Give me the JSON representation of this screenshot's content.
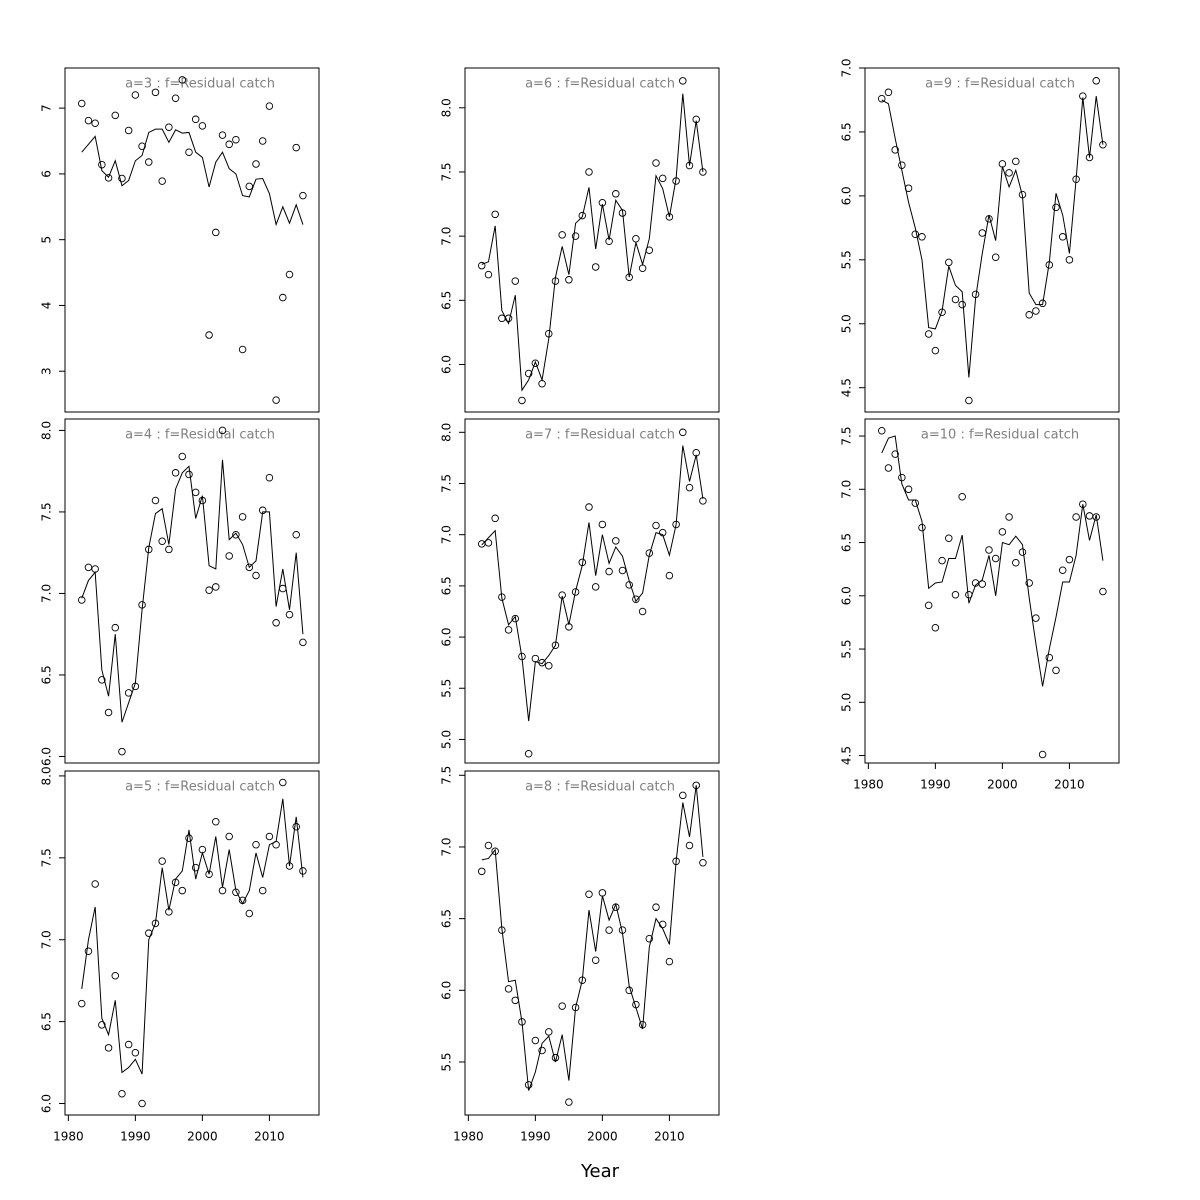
{
  "x_label": "Year",
  "chart_data": [
    {
      "type": "line",
      "title": "a=3  :  f=Residual catch",
      "x": [
        1982,
        1983,
        1984,
        1985,
        1986,
        1987,
        1988,
        1989,
        1990,
        1991,
        1992,
        1993,
        1994,
        1995,
        1996,
        1997,
        1998,
        1999,
        2000,
        2001,
        2002,
        2003,
        2004,
        2005,
        2006,
        2007,
        2008,
        2009,
        2010,
        2011,
        2012,
        2013,
        2014,
        2015
      ],
      "xlim": [
        1979.5,
        2017.4
      ],
      "ylim": [
        2.38,
        7.61
      ],
      "yticks": [
        3,
        4,
        5,
        6,
        7
      ],
      "series": [
        {
          "style": "points",
          "color": "#000000",
          "values": [
            7.07,
            6.81,
            6.77,
            6.14,
            5.94,
            6.89,
            5.93,
            6.66,
            7.2,
            6.42,
            6.18,
            7.24,
            5.89,
            6.71,
            7.15,
            7.43,
            6.33,
            6.83,
            6.73,
            3.55,
            5.11,
            6.59,
            6.45,
            6.52,
            3.33,
            5.81,
            6.15,
            6.5,
            7.03,
            2.56,
            4.12,
            4.47,
            6.4,
            5.67
          ]
        },
        {
          "style": "line",
          "color": "#000000",
          "values": [
            6.33,
            6.45,
            6.57,
            6.05,
            5.95,
            6.2,
            5.82,
            5.9,
            6.2,
            6.28,
            6.63,
            6.68,
            6.68,
            6.48,
            6.67,
            6.62,
            6.63,
            6.33,
            6.25,
            5.8,
            6.18,
            6.33,
            6.08,
            6.0,
            5.67,
            5.65,
            5.92,
            5.93,
            5.7,
            5.23,
            5.5,
            5.25,
            5.53,
            5.23
          ]
        }
      ]
    },
    {
      "type": "line",
      "title": "a=4  :  f=Residual catch",
      "x": [
        1982,
        1983,
        1984,
        1985,
        1986,
        1987,
        1988,
        1989,
        1990,
        1991,
        1992,
        1993,
        1994,
        1995,
        1996,
        1997,
        1998,
        1999,
        2000,
        2001,
        2002,
        2003,
        2004,
        2005,
        2006,
        2007,
        2008,
        2009,
        2010,
        2011,
        2012,
        2013,
        2014,
        2015
      ],
      "xlim": [
        1979.5,
        2017.4
      ],
      "ylim": [
        5.96,
        8.07
      ],
      "yticks": [
        {
          "value": 6,
          "label": "6.0"
        },
        6.5,
        {
          "value": 7,
          "label": "7.0"
        },
        7.5,
        {
          "value": 8,
          "label": "8.0"
        }
      ],
      "series": [
        {
          "style": "points",
          "color": "#000000",
          "values": [
            6.96,
            7.16,
            7.15,
            6.47,
            6.27,
            6.79,
            6.03,
            6.39,
            6.43,
            6.93,
            7.27,
            7.57,
            7.32,
            7.27,
            7.74,
            7.84,
            7.73,
            7.62,
            7.57,
            7.02,
            7.04,
            8.0,
            7.23,
            7.36,
            7.47,
            7.16,
            7.11,
            7.51,
            7.71,
            6.82,
            7.03,
            6.87,
            7.36,
            6.7
          ]
        },
        {
          "style": "line",
          "color": "#000000",
          "values": [
            6.97,
            7.08,
            7.13,
            6.53,
            6.37,
            6.75,
            6.21,
            6.33,
            6.45,
            6.9,
            7.28,
            7.49,
            7.52,
            7.3,
            7.64,
            7.74,
            7.78,
            7.46,
            7.6,
            7.17,
            7.15,
            7.82,
            7.33,
            7.37,
            7.3,
            7.16,
            7.2,
            7.5,
            7.5,
            6.92,
            7.15,
            6.9,
            7.25,
            6.75
          ]
        }
      ]
    },
    {
      "type": "line",
      "title": "a=5  :  f=Residual catch",
      "x": [
        1982,
        1983,
        1984,
        1985,
        1986,
        1987,
        1988,
        1989,
        1990,
        1991,
        1992,
        1993,
        1994,
        1995,
        1996,
        1997,
        1998,
        1999,
        2000,
        2001,
        2002,
        2003,
        2004,
        2005,
        2006,
        2007,
        2008,
        2009,
        2010,
        2011,
        2012,
        2013,
        2014,
        2015
      ],
      "xlim": [
        1979.5,
        2017.4
      ],
      "xticks": [
        1980,
        1990,
        2000,
        2010
      ],
      "ylim": [
        5.93,
        8.03
      ],
      "yticks": [
        {
          "value": 6,
          "label": "6.0"
        },
        6.5,
        {
          "value": 7,
          "label": "7.0"
        },
        7.5,
        {
          "value": 8,
          "label": "8.0"
        }
      ],
      "series": [
        {
          "style": "points",
          "color": "#000000",
          "values": [
            6.61,
            6.93,
            7.34,
            6.48,
            6.34,
            6.78,
            6.06,
            6.36,
            6.31,
            6.0,
            7.04,
            7.1,
            7.48,
            7.17,
            7.35,
            7.3,
            7.62,
            7.44,
            7.55,
            7.4,
            7.72,
            7.3,
            7.63,
            7.29,
            7.24,
            7.16,
            7.58,
            7.3,
            7.63,
            7.58,
            7.96,
            7.45,
            7.69,
            7.42
          ]
        },
        {
          "style": "line",
          "color": "#000000",
          "values": [
            6.7,
            7.0,
            7.2,
            6.52,
            6.42,
            6.63,
            6.19,
            6.22,
            6.27,
            6.18,
            7.0,
            7.1,
            7.44,
            7.18,
            7.37,
            7.42,
            7.67,
            7.37,
            7.53,
            7.4,
            7.63,
            7.32,
            7.55,
            7.3,
            7.22,
            7.3,
            7.53,
            7.38,
            7.58,
            7.6,
            7.86,
            7.45,
            7.75,
            7.38
          ]
        }
      ]
    },
    {
      "type": "line",
      "title": "a=6  :  f=Residual catch",
      "x": [
        1982,
        1983,
        1984,
        1985,
        1986,
        1987,
        1988,
        1989,
        1990,
        1991,
        1992,
        1993,
        1994,
        1995,
        1996,
        1997,
        1998,
        1999,
        2000,
        2001,
        2002,
        2003,
        2004,
        2005,
        2006,
        2007,
        2008,
        2009,
        2010,
        2011,
        2012,
        2013,
        2014,
        2015
      ],
      "xlim": [
        1979.5,
        2017.4
      ],
      "ylim": [
        5.63,
        8.31
      ],
      "yticks": [
        {
          "value": 6,
          "label": "6.0"
        },
        6.5,
        {
          "value": 7,
          "label": "7.0"
        },
        7.5,
        {
          "value": 8,
          "label": "8.0"
        }
      ],
      "series": [
        {
          "style": "points",
          "color": "#000000",
          "values": [
            6.77,
            6.7,
            7.17,
            6.36,
            6.36,
            6.65,
            5.72,
            5.93,
            6.01,
            5.85,
            6.24,
            6.65,
            7.01,
            6.66,
            7.0,
            7.16,
            7.5,
            6.76,
            7.26,
            6.96,
            7.33,
            7.18,
            6.68,
            6.98,
            6.75,
            6.89,
            7.57,
            7.45,
            7.15,
            7.43,
            8.21,
            7.55,
            7.91,
            7.5
          ]
        },
        {
          "style": "line",
          "color": "#000000",
          "values": [
            6.78,
            6.8,
            7.08,
            6.42,
            6.32,
            6.54,
            5.8,
            5.88,
            6.02,
            5.88,
            6.2,
            6.68,
            6.92,
            6.7,
            7.1,
            7.15,
            7.38,
            6.9,
            7.25,
            6.97,
            7.28,
            7.2,
            6.68,
            6.95,
            6.78,
            6.98,
            7.47,
            7.37,
            7.15,
            7.45,
            8.11,
            7.55,
            7.9,
            7.5
          ]
        }
      ]
    },
    {
      "type": "line",
      "title": "a=7  :  f=Residual catch",
      "x": [
        1982,
        1983,
        1984,
        1985,
        1986,
        1987,
        1988,
        1989,
        1990,
        1991,
        1992,
        1993,
        1994,
        1995,
        1996,
        1997,
        1998,
        1999,
        2000,
        2001,
        2002,
        2003,
        2004,
        2005,
        2006,
        2007,
        2008,
        2009,
        2010,
        2011,
        2012,
        2013,
        2014,
        2015
      ],
      "xlim": [
        1979.5,
        2017.4
      ],
      "ylim": [
        4.77,
        8.13
      ],
      "yticks": [
        {
          "value": 5,
          "label": "5.0"
        },
        5.5,
        {
          "value": 6,
          "label": "6.0"
        },
        6.5,
        {
          "value": 7,
          "label": "7.0"
        },
        7.5,
        {
          "value": 8,
          "label": "8.0"
        }
      ],
      "series": [
        {
          "style": "points",
          "color": "#000000",
          "values": [
            6.91,
            6.92,
            7.16,
            6.39,
            6.07,
            6.18,
            5.81,
            4.86,
            5.79,
            5.75,
            5.72,
            5.92,
            6.41,
            6.1,
            6.44,
            6.73,
            7.27,
            6.49,
            7.1,
            6.64,
            6.94,
            6.65,
            6.51,
            6.37,
            6.25,
            6.82,
            7.09,
            7.02,
            6.6,
            7.1,
            8.0,
            7.46,
            7.8,
            7.33
          ]
        },
        {
          "style": "line",
          "color": "#000000",
          "values": [
            6.9,
            6.97,
            7.04,
            6.38,
            6.12,
            6.2,
            5.8,
            5.18,
            5.76,
            5.74,
            5.82,
            5.92,
            6.4,
            6.12,
            6.45,
            6.7,
            7.12,
            6.6,
            7.0,
            6.72,
            6.88,
            6.79,
            6.55,
            6.35,
            6.43,
            6.8,
            7.02,
            7.0,
            6.8,
            7.1,
            7.87,
            7.52,
            7.78,
            7.35
          ]
        }
      ]
    },
    {
      "type": "line",
      "title": "a=8  :  f=Residual catch",
      "x": [
        1982,
        1983,
        1984,
        1985,
        1986,
        1987,
        1988,
        1989,
        1990,
        1991,
        1992,
        1993,
        1994,
        1995,
        1996,
        1997,
        1998,
        1999,
        2000,
        2001,
        2002,
        2003,
        2004,
        2005,
        2006,
        2007,
        2008,
        2009,
        2010,
        2011,
        2012,
        2013,
        2014,
        2015
      ],
      "xlim": [
        1979.5,
        2017.4
      ],
      "xticks": [
        1980,
        1990,
        2000,
        2010
      ],
      "ylim": [
        5.13,
        7.53
      ],
      "yticks": [
        5.5,
        {
          "value": 6,
          "label": "6.0"
        },
        6.5,
        {
          "value": 7,
          "label": "7.0"
        },
        7.5
      ],
      "series": [
        {
          "style": "points",
          "color": "#000000",
          "values": [
            6.83,
            7.01,
            6.97,
            6.42,
            6.01,
            5.93,
            5.78,
            5.34,
            5.65,
            5.58,
            5.71,
            5.53,
            5.89,
            5.22,
            5.88,
            6.07,
            6.67,
            6.21,
            6.68,
            6.42,
            6.58,
            6.42,
            6.0,
            5.9,
            5.76,
            6.36,
            6.58,
            6.46,
            6.2,
            6.9,
            7.36,
            7.01,
            7.43,
            6.89
          ]
        },
        {
          "style": "line",
          "color": "#000000",
          "values": [
            6.91,
            6.92,
            6.98,
            6.43,
            6.06,
            6.07,
            5.78,
            5.3,
            5.43,
            5.63,
            5.68,
            5.5,
            5.69,
            5.37,
            5.88,
            6.07,
            6.56,
            6.27,
            6.66,
            6.49,
            6.6,
            6.4,
            6.03,
            5.88,
            5.73,
            6.3,
            6.5,
            6.43,
            6.32,
            6.9,
            7.31,
            7.07,
            7.43,
            6.93
          ]
        }
      ]
    },
    {
      "type": "line",
      "title": "a=9  :  f=Residual catch",
      "x": [
        1982,
        1983,
        1984,
        1985,
        1986,
        1987,
        1988,
        1989,
        1990,
        1991,
        1992,
        1993,
        1994,
        1995,
        1996,
        1997,
        1998,
        1999,
        2000,
        2001,
        2002,
        2003,
        2004,
        2005,
        2006,
        2007,
        2008,
        2009,
        2010,
        2011,
        2012,
        2013,
        2014,
        2015
      ],
      "xlim": [
        1979.5,
        2017.4
      ],
      "ylim": [
        4.31,
        7.0
      ],
      "yticks": [
        4.5,
        {
          "value": 5,
          "label": "5.0"
        },
        5.5,
        {
          "value": 6,
          "label": "6.0"
        },
        6.5,
        {
          "value": 7,
          "label": "7.0"
        }
      ],
      "series": [
        {
          "style": "points",
          "color": "#000000",
          "values": [
            6.76,
            6.81,
            6.36,
            6.24,
            6.06,
            5.7,
            5.68,
            4.92,
            4.79,
            5.09,
            5.48,
            5.19,
            5.15,
            4.4,
            5.23,
            5.71,
            5.82,
            5.52,
            6.25,
            6.18,
            6.27,
            6.01,
            5.07,
            5.1,
            5.16,
            5.46,
            5.91,
            5.68,
            5.5,
            6.13,
            6.78,
            6.3,
            6.9,
            6.4
          ]
        },
        {
          "style": "line",
          "color": "#000000",
          "values": [
            6.75,
            6.72,
            6.45,
            6.2,
            5.95,
            5.75,
            5.5,
            4.97,
            4.96,
            5.1,
            5.45,
            5.3,
            5.25,
            4.58,
            5.2,
            5.55,
            5.85,
            5.65,
            6.23,
            6.07,
            6.2,
            6.0,
            5.24,
            5.15,
            5.15,
            5.48,
            6.02,
            5.85,
            5.55,
            6.13,
            6.77,
            6.3,
            6.78,
            6.4
          ]
        }
      ]
    },
    {
      "type": "line",
      "title": "a=10  :  f=Residual catch",
      "x": [
        1982,
        1983,
        1984,
        1985,
        1986,
        1987,
        1988,
        1989,
        1990,
        1991,
        1992,
        1993,
        1994,
        1995,
        1996,
        1997,
        1998,
        1999,
        2000,
        2001,
        2002,
        2003,
        2004,
        2005,
        2006,
        2007,
        2008,
        2009,
        2010,
        2011,
        2012,
        2013,
        2014,
        2015
      ],
      "xlim": [
        1979.5,
        2017.4
      ],
      "xticks": [
        1980,
        1990,
        2000,
        2010
      ],
      "ylim": [
        4.43,
        7.66
      ],
      "yticks": [
        4.5,
        {
          "value": 5,
          "label": "5.0"
        },
        5.5,
        {
          "value": 6,
          "label": "6.0"
        },
        6.5,
        {
          "value": 7,
          "label": "7.0"
        },
        7.5
      ],
      "series": [
        {
          "style": "points",
          "color": "#000000",
          "values": [
            7.55,
            7.2,
            7.33,
            7.11,
            7.0,
            6.87,
            6.64,
            5.91,
            5.7,
            6.33,
            6.54,
            6.01,
            6.93,
            6.01,
            6.12,
            6.11,
            6.43,
            6.35,
            6.6,
            6.74,
            6.31,
            6.41,
            6.12,
            5.79,
            4.51,
            5.42,
            5.3,
            6.24,
            6.34,
            6.74,
            6.86,
            6.75,
            6.74,
            6.04
          ]
        },
        {
          "style": "line",
          "color": "#000000",
          "values": [
            7.34,
            7.48,
            7.5,
            7.05,
            6.9,
            6.9,
            6.7,
            6.07,
            6.12,
            6.13,
            6.35,
            6.35,
            6.57,
            5.93,
            6.1,
            6.15,
            6.38,
            6.0,
            6.5,
            6.48,
            6.56,
            6.48,
            5.98,
            5.55,
            5.15,
            5.5,
            5.8,
            6.13,
            6.13,
            6.38,
            6.86,
            6.52,
            6.76,
            6.33
          ]
        }
      ]
    }
  ]
}
